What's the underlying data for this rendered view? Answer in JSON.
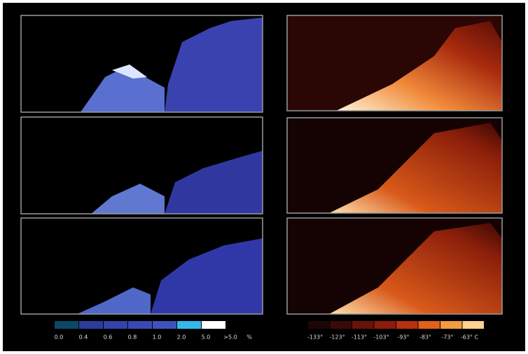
{
  "left_colorbar": {
    "colors": [
      "#0b4868",
      "#2c3c9c",
      "#3442aa",
      "#3a4ab4",
      "#4050bc",
      "#34b8ec",
      "#ffffff"
    ],
    "labels": [
      "0.0",
      "0.4",
      "0.6",
      "0.8",
      "1.0",
      "2.0",
      "5.0",
      ">5.0"
    ],
    "unit": "%"
  },
  "right_colorbar": {
    "colors": [
      "#1e0604",
      "#3c0a06",
      "#6a1208",
      "#8e1c0a",
      "#b83010",
      "#e0601c",
      "#f49a40",
      "#fcd090"
    ],
    "labels": [
      "-133°",
      "-123°",
      "-113°",
      "-103°",
      "-93°",
      "-83°",
      "-73°",
      "-63° C"
    ]
  }
}
